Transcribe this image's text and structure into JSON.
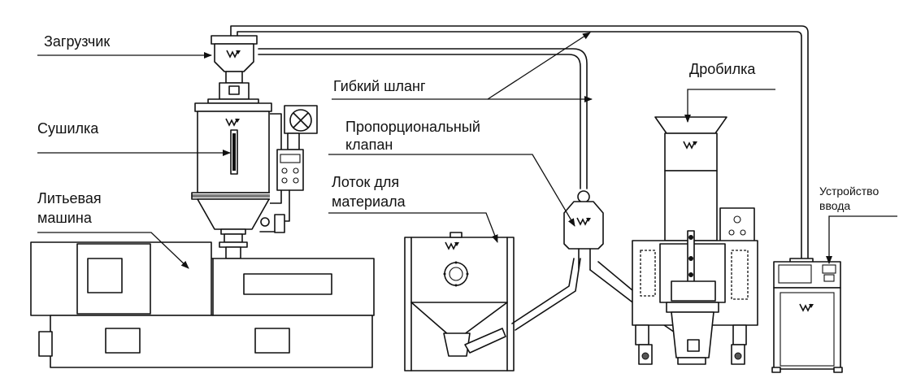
{
  "labels": {
    "loader": "Загрузчик",
    "dryer": "Сушилка",
    "molding_machine_line1": "Литьевая",
    "molding_machine_line2": "машина",
    "flexible_hose": "Гибкий шланг",
    "proportional_valve_line1": "Пропорциональный",
    "proportional_valve_line2": "клапан",
    "material_tray_line1": "Лоток для",
    "material_tray_line2": "материала",
    "crusher": "Дробилка",
    "input_device_line1": "Устройство",
    "input_device_line2": "ввода"
  },
  "colors": {
    "line": "#111111",
    "background": "#ffffff"
  },
  "icons": {
    "brand_mark": "brand-logo-icon",
    "fan": "fan-icon"
  }
}
